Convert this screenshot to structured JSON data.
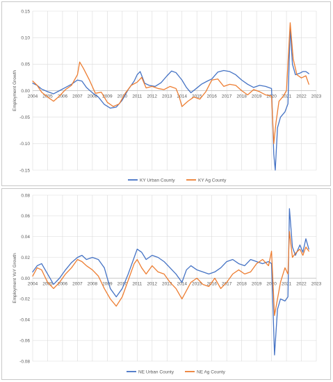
{
  "chart_data": [
    {
      "type": "line",
      "title": "",
      "xlabel": "",
      "ylabel": "Employment Growth",
      "xlim": [
        2004,
        2023
      ],
      "ylim": [
        -0.15,
        0.15
      ],
      "yticks": [
        -0.15,
        -0.1,
        -0.05,
        0.0,
        0.05,
        0.1,
        0.15
      ],
      "ytick_labels": [
        "-0.15",
        "-0.10",
        "-0.05",
        "0.00",
        "0.05",
        "0.10",
        "0.15"
      ],
      "xticks": [
        2004,
        2005,
        2006,
        2007,
        2008,
        2009,
        2010,
        2011,
        2012,
        2013,
        2014,
        2015,
        2016,
        2017,
        2018,
        2019,
        2020,
        2021,
        2022,
        2023
      ],
      "xtick_labels": [
        "2004",
        "2005",
        "2006",
        "2007",
        "2008",
        "2009",
        "2010",
        "2011",
        "2012",
        "2013",
        "2014",
        "2015",
        "2016",
        "2017",
        "2018",
        "2019",
        "2020",
        "2021",
        "2022",
        "2023"
      ],
      "grid": true,
      "legend_position": "bottom",
      "series": [
        {
          "name": "KY Urban County",
          "color": "#4472c4",
          "points": [
            [
              2004.0,
              0.014
            ],
            [
              2004.3,
              0.01
            ],
            [
              2004.6,
              0.003
            ],
            [
              2005.0,
              -0.002
            ],
            [
              2005.4,
              -0.006
            ],
            [
              2005.8,
              0.0
            ],
            [
              2006.2,
              0.006
            ],
            [
              2006.6,
              0.012
            ],
            [
              2007.0,
              0.02
            ],
            [
              2007.3,
              0.018
            ],
            [
              2007.6,
              0.006
            ],
            [
              2008.0,
              -0.004
            ],
            [
              2008.4,
              -0.012
            ],
            [
              2008.8,
              -0.026
            ],
            [
              2009.2,
              -0.033
            ],
            [
              2009.6,
              -0.031
            ],
            [
              2010.0,
              -0.018
            ],
            [
              2010.4,
              0.002
            ],
            [
              2010.8,
              0.018
            ],
            [
              2011.0,
              0.03
            ],
            [
              2011.2,
              0.036
            ],
            [
              2011.5,
              0.014
            ],
            [
              2011.8,
              0.01
            ],
            [
              2012.2,
              0.008
            ],
            [
              2012.6,
              0.015
            ],
            [
              2013.0,
              0.028
            ],
            [
              2013.3,
              0.037
            ],
            [
              2013.6,
              0.034
            ],
            [
              2014.0,
              0.02
            ],
            [
              2014.3,
              0.006
            ],
            [
              2014.6,
              -0.004
            ],
            [
              2015.0,
              0.005
            ],
            [
              2015.3,
              0.012
            ],
            [
              2015.7,
              0.018
            ],
            [
              2016.0,
              0.022
            ],
            [
              2016.4,
              0.035
            ],
            [
              2016.8,
              0.038
            ],
            [
              2017.2,
              0.036
            ],
            [
              2017.6,
              0.03
            ],
            [
              2018.0,
              0.02
            ],
            [
              2018.4,
              0.012
            ],
            [
              2018.8,
              0.006
            ],
            [
              2019.2,
              0.01
            ],
            [
              2019.6,
              0.008
            ],
            [
              2020.0,
              0.004
            ],
            [
              2020.15,
              -0.12
            ],
            [
              2020.25,
              -0.15
            ],
            [
              2020.4,
              -0.07
            ],
            [
              2020.6,
              -0.05
            ],
            [
              2020.9,
              -0.04
            ],
            [
              2021.1,
              -0.025
            ],
            [
              2021.25,
              0.12
            ],
            [
              2021.4,
              0.05
            ],
            [
              2021.6,
              0.03
            ],
            [
              2021.9,
              0.033
            ],
            [
              2022.1,
              0.036
            ],
            [
              2022.3,
              0.036
            ],
            [
              2022.5,
              0.032
            ]
          ]
        },
        {
          "name": "KY Ag County",
          "color": "#ed7d31",
          "points": [
            [
              2004.0,
              0.018
            ],
            [
              2004.3,
              0.01
            ],
            [
              2004.6,
              -0.003
            ],
            [
              2005.0,
              -0.012
            ],
            [
              2005.4,
              -0.02
            ],
            [
              2005.8,
              -0.01
            ],
            [
              2006.2,
              0.002
            ],
            [
              2006.6,
              0.01
            ],
            [
              2007.0,
              0.03
            ],
            [
              2007.15,
              0.054
            ],
            [
              2007.4,
              0.042
            ],
            [
              2007.8,
              0.02
            ],
            [
              2008.2,
              -0.005
            ],
            [
              2008.6,
              -0.003
            ],
            [
              2009.0,
              -0.022
            ],
            [
              2009.4,
              -0.03
            ],
            [
              2009.8,
              -0.025
            ],
            [
              2010.2,
              -0.005
            ],
            [
              2010.6,
              0.01
            ],
            [
              2011.0,
              0.016
            ],
            [
              2011.3,
              0.025
            ],
            [
              2011.6,
              0.005
            ],
            [
              2012.0,
              0.008
            ],
            [
              2012.4,
              0.004
            ],
            [
              2012.8,
              0.002
            ],
            [
              2013.2,
              0.008
            ],
            [
              2013.6,
              0.004
            ],
            [
              2013.8,
              -0.01
            ],
            [
              2014.0,
              -0.03
            ],
            [
              2014.4,
              -0.02
            ],
            [
              2014.8,
              -0.012
            ],
            [
              2015.2,
              -0.016
            ],
            [
              2015.6,
              -0.002
            ],
            [
              2016.0,
              0.02
            ],
            [
              2016.4,
              0.022
            ],
            [
              2016.8,
              0.008
            ],
            [
              2017.2,
              0.012
            ],
            [
              2017.6,
              0.01
            ],
            [
              2018.0,
              0.0
            ],
            [
              2018.4,
              -0.008
            ],
            [
              2018.8,
              0.002
            ],
            [
              2019.2,
              -0.002
            ],
            [
              2019.6,
              -0.008
            ],
            [
              2020.0,
              -0.01
            ],
            [
              2020.15,
              -0.1
            ],
            [
              2020.3,
              -0.06
            ],
            [
              2020.5,
              -0.02
            ],
            [
              2020.8,
              -0.01
            ],
            [
              2021.0,
              0.0
            ],
            [
              2021.25,
              0.128
            ],
            [
              2021.45,
              0.06
            ],
            [
              2021.7,
              0.03
            ],
            [
              2022.0,
              0.024
            ],
            [
              2022.3,
              0.028
            ],
            [
              2022.5,
              0.012
            ]
          ]
        }
      ]
    },
    {
      "type": "line",
      "title": "",
      "xlabel": "",
      "ylabel": "Employment YoY Growth",
      "xlim": [
        2004,
        2023
      ],
      "ylim": [
        -0.08,
        0.08
      ],
      "yticks": [
        -0.08,
        -0.06,
        -0.04,
        -0.02,
        0.0,
        0.02,
        0.04,
        0.06,
        0.08
      ],
      "ytick_labels": [
        "-0.08",
        "-0.06",
        "-0.04",
        "-0.02",
        "0.00",
        "0.02",
        "0.04",
        "0.06",
        "0.08"
      ],
      "xticks": [
        2004,
        2005,
        2006,
        2007,
        2008,
        2009,
        2010,
        2011,
        2012,
        2013,
        2014,
        2015,
        2016,
        2017,
        2018,
        2019,
        2020,
        2021,
        2022,
        2023
      ],
      "xtick_labels": [
        "2004",
        "2005",
        "2006",
        "2007",
        "2008",
        "2009",
        "2010",
        "2011",
        "2012",
        "2013",
        "2014",
        "2015",
        "2016",
        "2017",
        "2018",
        "2019",
        "2020",
        "2021",
        "2022",
        "2023"
      ],
      "grid": true,
      "legend_position": "bottom",
      "series": [
        {
          "name": "NE Urban County",
          "color": "#4472c4",
          "points": [
            [
              2004.0,
              0.006
            ],
            [
              2004.3,
              0.012
            ],
            [
              2004.6,
              0.014
            ],
            [
              2005.0,
              0.004
            ],
            [
              2005.4,
              -0.006
            ],
            [
              2005.8,
              0.0
            ],
            [
              2006.2,
              0.008
            ],
            [
              2006.6,
              0.015
            ],
            [
              2007.0,
              0.02
            ],
            [
              2007.3,
              0.022
            ],
            [
              2007.6,
              0.018
            ],
            [
              2008.0,
              0.02
            ],
            [
              2008.4,
              0.018
            ],
            [
              2008.8,
              0.01
            ],
            [
              2009.2,
              -0.01
            ],
            [
              2009.6,
              -0.018
            ],
            [
              2010.0,
              -0.01
            ],
            [
              2010.4,
              0.004
            ],
            [
              2010.8,
              0.02
            ],
            [
              2011.0,
              0.028
            ],
            [
              2011.3,
              0.025
            ],
            [
              2011.6,
              0.018
            ],
            [
              2012.0,
              0.022
            ],
            [
              2012.4,
              0.02
            ],
            [
              2012.8,
              0.016
            ],
            [
              2013.2,
              0.01
            ],
            [
              2013.6,
              0.004
            ],
            [
              2014.0,
              -0.004
            ],
            [
              2014.3,
              0.008
            ],
            [
              2014.6,
              0.012
            ],
            [
              2015.0,
              0.008
            ],
            [
              2015.4,
              0.006
            ],
            [
              2015.8,
              0.004
            ],
            [
              2016.2,
              0.006
            ],
            [
              2016.6,
              0.01
            ],
            [
              2017.0,
              0.016
            ],
            [
              2017.4,
              0.018
            ],
            [
              2017.8,
              0.014
            ],
            [
              2018.2,
              0.012
            ],
            [
              2018.6,
              0.018
            ],
            [
              2019.0,
              0.016
            ],
            [
              2019.4,
              0.014
            ],
            [
              2019.8,
              0.016
            ],
            [
              2020.0,
              0.014
            ],
            [
              2020.2,
              -0.074
            ],
            [
              2020.4,
              -0.03
            ],
            [
              2020.6,
              -0.02
            ],
            [
              2020.9,
              -0.022
            ],
            [
              2021.1,
              -0.018
            ],
            [
              2021.2,
              0.067
            ],
            [
              2021.4,
              0.03
            ],
            [
              2021.6,
              0.022
            ],
            [
              2021.9,
              0.032
            ],
            [
              2022.1,
              0.025
            ],
            [
              2022.3,
              0.038
            ],
            [
              2022.5,
              0.028
            ]
          ]
        },
        {
          "name": "NE Ag County",
          "color": "#ed7d31",
          "points": [
            [
              2004.0,
              0.002
            ],
            [
              2004.3,
              0.01
            ],
            [
              2004.6,
              0.008
            ],
            [
              2005.0,
              -0.004
            ],
            [
              2005.4,
              -0.01
            ],
            [
              2005.8,
              -0.004
            ],
            [
              2006.2,
              0.004
            ],
            [
              2006.6,
              0.01
            ],
            [
              2007.0,
              0.018
            ],
            [
              2007.3,
              0.016
            ],
            [
              2007.6,
              0.012
            ],
            [
              2008.0,
              0.008
            ],
            [
              2008.4,
              0.002
            ],
            [
              2008.8,
              -0.01
            ],
            [
              2009.2,
              -0.02
            ],
            [
              2009.6,
              -0.027
            ],
            [
              2010.0,
              -0.018
            ],
            [
              2010.4,
              -0.002
            ],
            [
              2010.8,
              0.014
            ],
            [
              2011.0,
              0.018
            ],
            [
              2011.3,
              0.01
            ],
            [
              2011.6,
              0.004
            ],
            [
              2012.0,
              0.012
            ],
            [
              2012.4,
              0.006
            ],
            [
              2012.8,
              0.004
            ],
            [
              2013.2,
              -0.004
            ],
            [
              2013.6,
              -0.01
            ],
            [
              2014.0,
              -0.02
            ],
            [
              2014.3,
              -0.012
            ],
            [
              2014.6,
              -0.004
            ],
            [
              2015.0,
              0.0
            ],
            [
              2015.4,
              -0.006
            ],
            [
              2015.8,
              -0.008
            ],
            [
              2016.2,
              0.0
            ],
            [
              2016.6,
              -0.01
            ],
            [
              2017.0,
              -0.004
            ],
            [
              2017.4,
              0.004
            ],
            [
              2017.8,
              0.008
            ],
            [
              2018.2,
              0.004
            ],
            [
              2018.6,
              0.006
            ],
            [
              2019.0,
              0.014
            ],
            [
              2019.4,
              0.018
            ],
            [
              2019.8,
              0.012
            ],
            [
              2020.0,
              0.026
            ],
            [
              2020.2,
              -0.036
            ],
            [
              2020.4,
              -0.02
            ],
            [
              2020.6,
              -0.004
            ],
            [
              2020.9,
              0.01
            ],
            [
              2021.1,
              0.004
            ],
            [
              2021.2,
              0.045
            ],
            [
              2021.4,
              0.02
            ],
            [
              2021.6,
              0.024
            ],
            [
              2021.9,
              0.028
            ],
            [
              2022.1,
              0.022
            ],
            [
              2022.3,
              0.03
            ],
            [
              2022.5,
              0.026
            ]
          ]
        }
      ]
    }
  ]
}
